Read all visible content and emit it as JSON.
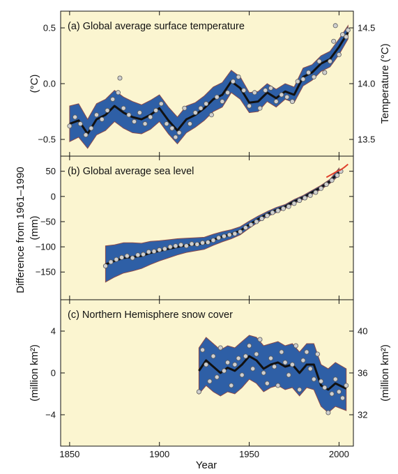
{
  "figure": {
    "shared_ylabel": "Difference from 1961–1990",
    "xlabel": "Year",
    "x_ticks": [
      1850,
      1900,
      1950,
      2000
    ],
    "xlim": [
      1845,
      2008
    ]
  },
  "colors": {
    "background": "#fbf5d0",
    "band": "#2e5fa6",
    "band_edge": "#8a4a4a",
    "smooth_line": "#111111",
    "points": "#cfcfcf",
    "point_edge": "#5a5a5a",
    "recent_red": "#e0402c"
  },
  "chart_data": [
    {
      "type": "line",
      "title": "(a) Global average surface temperature",
      "ylabel": "(°C)",
      "ylabel_right": "Temperature (°C)",
      "ylim": [
        -0.65,
        0.65
      ],
      "y_ticks": [
        -0.5,
        0.0,
        0.5
      ],
      "y_tick_labels": [
        "−0.5",
        "0.0",
        "0.5"
      ],
      "right_ticks": [
        13.5,
        14.0,
        14.5
      ],
      "right_tick_labels": [
        "13.5",
        "14.0",
        "14.5"
      ],
      "right_offset": 14.0,
      "series": [
        {
          "kind": "smoothed_with_uncertainty",
          "x": [
            1850,
            1855,
            1860,
            1865,
            1870,
            1875,
            1880,
            1885,
            1890,
            1895,
            1900,
            1905,
            1910,
            1915,
            1920,
            1925,
            1930,
            1935,
            1940,
            1945,
            1950,
            1955,
            1960,
            1965,
            1970,
            1975,
            1980,
            1985,
            1990,
            1995,
            2000,
            2005
          ],
          "y": [
            -0.36,
            -0.33,
            -0.45,
            -0.32,
            -0.28,
            -0.2,
            -0.26,
            -0.3,
            -0.32,
            -0.28,
            -0.22,
            -0.33,
            -0.42,
            -0.32,
            -0.28,
            -0.22,
            -0.14,
            -0.1,
            0.02,
            -0.04,
            -0.17,
            -0.16,
            -0.08,
            -0.13,
            -0.07,
            -0.1,
            0.06,
            0.1,
            0.18,
            0.22,
            0.33,
            0.46
          ],
          "lower": [
            -0.52,
            -0.48,
            -0.58,
            -0.46,
            -0.42,
            -0.34,
            -0.4,
            -0.44,
            -0.45,
            -0.41,
            -0.34,
            -0.45,
            -0.54,
            -0.44,
            -0.39,
            -0.33,
            -0.25,
            -0.21,
            -0.08,
            -0.14,
            -0.26,
            -0.25,
            -0.16,
            -0.21,
            -0.14,
            -0.17,
            -0.02,
            0.03,
            0.11,
            0.15,
            0.26,
            0.4
          ],
          "upper": [
            -0.2,
            -0.18,
            -0.32,
            -0.18,
            -0.14,
            -0.06,
            -0.12,
            -0.16,
            -0.19,
            -0.15,
            -0.1,
            -0.21,
            -0.3,
            -0.2,
            -0.17,
            -0.11,
            -0.03,
            0.01,
            0.12,
            0.06,
            -0.08,
            -0.07,
            0.0,
            -0.05,
            0.0,
            -0.03,
            0.14,
            0.17,
            0.25,
            0.29,
            0.4,
            0.52
          ]
        }
      ],
      "annual_points": {
        "x": [
          1850,
          1853,
          1856,
          1859,
          1862,
          1865,
          1868,
          1871,
          1874,
          1877,
          1878,
          1880,
          1883,
          1886,
          1889,
          1892,
          1895,
          1898,
          1901,
          1904,
          1907,
          1909,
          1911,
          1914,
          1917,
          1920,
          1923,
          1926,
          1929,
          1932,
          1935,
          1938,
          1941,
          1944,
          1947,
          1950,
          1953,
          1956,
          1959,
          1962,
          1965,
          1968,
          1971,
          1974,
          1977,
          1980,
          1983,
          1986,
          1989,
          1992,
          1995,
          1997,
          1998,
          2000,
          2002,
          2004,
          2005
        ],
        "y": [
          -0.38,
          -0.3,
          -0.36,
          -0.46,
          -0.4,
          -0.28,
          -0.32,
          -0.24,
          -0.14,
          -0.08,
          0.05,
          -0.22,
          -0.28,
          -0.34,
          -0.26,
          -0.36,
          -0.3,
          -0.24,
          -0.18,
          -0.36,
          -0.4,
          -0.48,
          -0.44,
          -0.22,
          -0.36,
          -0.26,
          -0.22,
          -0.18,
          -0.28,
          -0.12,
          -0.16,
          -0.08,
          0.02,
          0.06,
          -0.06,
          -0.2,
          -0.08,
          -0.22,
          -0.06,
          -0.04,
          -0.16,
          -0.1,
          -0.12,
          -0.16,
          0.02,
          0.04,
          0.1,
          0.06,
          0.2,
          0.1,
          0.2,
          0.38,
          0.52,
          0.26,
          0.44,
          0.42,
          0.48
        ]
      }
    },
    {
      "type": "line",
      "title": "(b) Global average sea level",
      "ylabel": "(mm)",
      "ylim": [
        -205,
        80
      ],
      "y_ticks": [
        -150,
        -100,
        -50,
        0,
        50
      ],
      "y_tick_labels": [
        "−150",
        "−100",
        "−50",
        "0",
        "50"
      ],
      "series": [
        {
          "kind": "smoothed_with_uncertainty",
          "x": [
            1870,
            1875,
            1880,
            1885,
            1890,
            1895,
            1900,
            1905,
            1910,
            1915,
            1920,
            1925,
            1930,
            1935,
            1940,
            1945,
            1950,
            1955,
            1960,
            1965,
            1970,
            1975,
            1980,
            1985,
            1990,
            1995,
            2000
          ],
          "y": [
            -135,
            -128,
            -122,
            -120,
            -118,
            -112,
            -108,
            -104,
            -100,
            -97,
            -95,
            -93,
            -86,
            -80,
            -75,
            -68,
            -56,
            -45,
            -35,
            -27,
            -20,
            -10,
            -2,
            8,
            18,
            30,
            48
          ],
          "lower": [
            -170,
            -160,
            -152,
            -148,
            -143,
            -135,
            -128,
            -122,
            -116,
            -111,
            -108,
            -105,
            -97,
            -90,
            -84,
            -76,
            -63,
            -51,
            -40,
            -32,
            -24,
            -14,
            -6,
            4,
            14,
            26,
            42
          ],
          "upper": [
            -98,
            -96,
            -92,
            -92,
            -93,
            -89,
            -88,
            -86,
            -84,
            -83,
            -82,
            -81,
            -75,
            -70,
            -66,
            -60,
            -49,
            -39,
            -30,
            -22,
            -16,
            -6,
            2,
            12,
            22,
            34,
            56
          ]
        },
        {
          "kind": "satellite_red",
          "x": [
            1993,
            1995,
            1997,
            1999,
            2001,
            2003,
            2005
          ],
          "y": [
            38,
            42,
            46,
            50,
            53,
            58,
            64
          ]
        }
      ],
      "annual_points": {
        "x": [
          1870,
          1873,
          1876,
          1879,
          1882,
          1885,
          1888,
          1891,
          1894,
          1897,
          1900,
          1903,
          1906,
          1909,
          1912,
          1915,
          1918,
          1921,
          1924,
          1927,
          1930,
          1933,
          1936,
          1939,
          1942,
          1945,
          1948,
          1951,
          1954,
          1957,
          1960,
          1963,
          1966,
          1969,
          1972,
          1975,
          1978,
          1981,
          1984,
          1987,
          1990,
          1993,
          1996,
          1999,
          2001
        ],
        "y": [
          -138,
          -130,
          -125,
          -121,
          -118,
          -122,
          -116,
          -115,
          -110,
          -109,
          -106,
          -104,
          -100,
          -98,
          -96,
          -98,
          -94,
          -95,
          -92,
          -91,
          -87,
          -82,
          -79,
          -76,
          -74,
          -70,
          -62,
          -56,
          -50,
          -44,
          -38,
          -32,
          -28,
          -24,
          -20,
          -14,
          -8,
          -3,
          2,
          8,
          16,
          24,
          32,
          42,
          50
        ]
      }
    },
    {
      "type": "line",
      "title": "(c) Northern Hemisphere snow cover",
      "ylabel": "(million km²)",
      "ylabel_right": "(million km²)",
      "ylim": [
        -7,
        7
      ],
      "y_ticks": [
        -4,
        0,
        4
      ],
      "y_tick_labels": [
        "−4",
        "0",
        "4"
      ],
      "right_ticks": [
        32,
        36,
        40
      ],
      "right_tick_labels": [
        "32",
        "36",
        "40"
      ],
      "right_offset": 36,
      "series": [
        {
          "kind": "smoothed_with_uncertainty",
          "x": [
            1922,
            1926,
            1930,
            1934,
            1938,
            1942,
            1946,
            1950,
            1954,
            1958,
            1962,
            1966,
            1970,
            1974,
            1978,
            1982,
            1986,
            1990,
            1994,
            1998,
            2004
          ],
          "y": [
            0.2,
            1.2,
            0.6,
            0.0,
            0.5,
            0.2,
            0.8,
            1.6,
            1.2,
            0.4,
            0.8,
            1.0,
            0.6,
            0.8,
            0.0,
            0.8,
            0.8,
            -1.2,
            -1.6,
            -1.0,
            -1.5
          ],
          "lower": [
            -2.0,
            -1.2,
            -1.8,
            -2.2,
            -1.8,
            -2.0,
            -1.4,
            -0.6,
            -1.0,
            -1.8,
            -1.4,
            -1.2,
            -1.6,
            -1.4,
            -2.2,
            -1.4,
            -1.6,
            -3.2,
            -3.8,
            -3.2,
            -3.6
          ],
          "upper": [
            2.4,
            3.4,
            2.8,
            2.2,
            2.6,
            2.4,
            3.0,
            3.6,
            3.4,
            2.6,
            2.8,
            3.0,
            2.6,
            2.8,
            2.0,
            2.8,
            2.8,
            0.8,
            0.4,
            1.0,
            0.4
          ]
        }
      ],
      "annual_points": {
        "x": [
          1922,
          1924,
          1926,
          1928,
          1930,
          1932,
          1934,
          1936,
          1938,
          1940,
          1942,
          1944,
          1946,
          1948,
          1950,
          1952,
          1954,
          1956,
          1958,
          1960,
          1962,
          1964,
          1966,
          1968,
          1970,
          1972,
          1974,
          1976,
          1978,
          1980,
          1982,
          1984,
          1986,
          1988,
          1990,
          1992,
          1994,
          1996,
          1998,
          2000,
          2002,
          2004
        ],
        "y": [
          -1.8,
          2.2,
          0.8,
          -0.8,
          1.6,
          -0.4,
          2.4,
          0.2,
          1.0,
          -1.2,
          0.8,
          1.4,
          -0.2,
          1.6,
          2.6,
          0.4,
          1.8,
          3.2,
          0.0,
          -1.0,
          1.4,
          0.6,
          -1.2,
          2.0,
          1.0,
          -0.2,
          0.8,
          2.6,
          -1.6,
          1.2,
          2.0,
          0.4,
          -0.6,
          1.8,
          -0.8,
          -1.4,
          -3.8,
          -2.0,
          -0.6,
          -1.8,
          -2.4,
          -1.2
        ]
      }
    }
  ]
}
